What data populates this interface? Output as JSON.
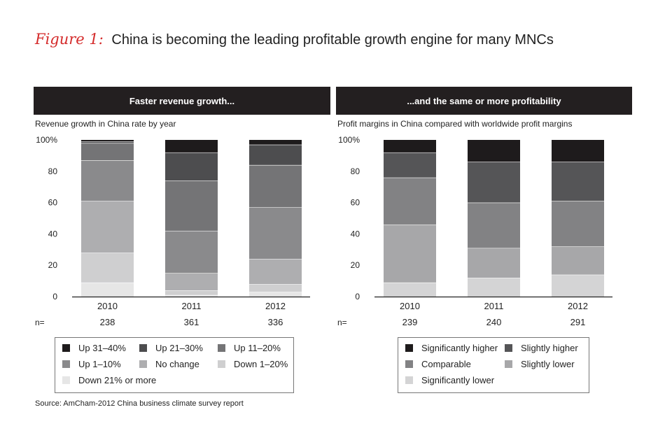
{
  "figure": {
    "label": "Figure 1:",
    "title": "China is becoming the leading profitable growth engine for many MNCs"
  },
  "source": "Source: AmCham-2012 China business climate survey report",
  "chart_data": [
    {
      "type": "bar",
      "stacked": true,
      "header": "Faster revenue growth...",
      "title": "Revenue growth in China rate by year",
      "categories": [
        "2010",
        "2011",
        "2012"
      ],
      "n_label": "n=",
      "n_values": [
        "238",
        "361",
        "336"
      ],
      "ylim": [
        0,
        100
      ],
      "yticks": [
        "0",
        "20",
        "40",
        "60",
        "80",
        "100%"
      ],
      "series": [
        {
          "name": "Down 21% or more",
          "color": "#e6e6e6",
          "values": [
            9,
            1,
            3
          ]
        },
        {
          "name": "Down 1–20%",
          "color": "#cfcfd0",
          "values": [
            19,
            3,
            5
          ]
        },
        {
          "name": "No change",
          "color": "#aeaeb0",
          "values": [
            33,
            11,
            16
          ]
        },
        {
          "name": "Up 1–10%",
          "color": "#8a8a8c",
          "values": [
            26,
            27,
            33
          ]
        },
        {
          "name": "Up 11–20%",
          "color": "#747476",
          "values": [
            11,
            32,
            27
          ]
        },
        {
          "name": "Up 21–30%",
          "color": "#4d4d4f",
          "values": [
            1,
            18,
            13
          ]
        },
        {
          "name": "Up 31–40%",
          "color": "#1e1b1c",
          "values": [
            1,
            8,
            3
          ]
        }
      ]
    },
    {
      "type": "bar",
      "stacked": true,
      "header": "...and  the same or more profitability",
      "title": "Profit margins in China compared with worldwide profit margins",
      "categories": [
        "2010",
        "2011",
        "2012"
      ],
      "n_label": "n=",
      "n_values": [
        "239",
        "240",
        "291"
      ],
      "ylim": [
        0,
        100
      ],
      "yticks": [
        "0",
        "20",
        "40",
        "60",
        "80",
        "100%"
      ],
      "series": [
        {
          "name": "Significantly lower",
          "color": "#d4d4d5",
          "values": [
            9,
            12,
            14
          ]
        },
        {
          "name": "Slightly lower",
          "color": "#a7a7a9",
          "values": [
            37,
            19,
            18
          ]
        },
        {
          "name": "Comparable",
          "color": "#828284",
          "values": [
            30,
            29,
            29
          ]
        },
        {
          "name": "Slightly higher",
          "color": "#555557",
          "values": [
            16,
            26,
            25
          ]
        },
        {
          "name": "Significantly higher",
          "color": "#1e1b1c",
          "values": [
            8,
            14,
            14
          ]
        }
      ]
    }
  ],
  "legends": [
    {
      "items": [
        {
          "label": "Up 31–40%",
          "color": "#1e1b1c"
        },
        {
          "label": "Up 21–30%",
          "color": "#4d4d4f"
        },
        {
          "label": "Up 11–20%",
          "color": "#747476"
        },
        {
          "label": "Up 1–10%",
          "color": "#8a8a8c"
        },
        {
          "label": "No change",
          "color": "#aeaeb0"
        },
        {
          "label": "Down 1–20%",
          "color": "#cfcfd0"
        },
        {
          "label": "Down 21% or more",
          "color": "#e6e6e6"
        }
      ]
    },
    {
      "items": [
        {
          "label": "Significantly higher",
          "color": "#1e1b1c"
        },
        {
          "label": "Slightly higher",
          "color": "#555557"
        },
        {
          "label": "Comparable",
          "color": "#828284"
        },
        {
          "label": "Slightly lower",
          "color": "#a7a7a9"
        },
        {
          "label": "Significantly lower",
          "color": "#d4d4d5"
        }
      ]
    }
  ]
}
